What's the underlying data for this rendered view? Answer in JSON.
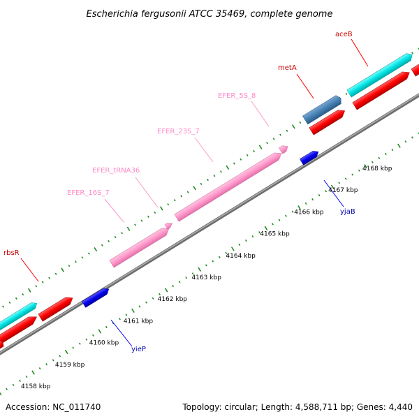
{
  "title": "Escherichia fergusonii ATCC 35469, complete genome",
  "footer": {
    "accession": "Accession: NC_011740",
    "summary": "Topology: circular; Length: 4,588,711 bp; Genes: 4,440"
  },
  "colors": {
    "backbone": "#808080",
    "cds_forward": "#ff0000",
    "cds_reverse": "#0000ee",
    "rrna": "#ff99cc",
    "trna": "#ff99cc",
    "operon": "#00e5e5",
    "misc": "#4682b4",
    "ticks": "#228b22"
  },
  "scale": {
    "ticks": [
      "4158 kbp",
      "4159 kbp",
      "4160 kbp",
      "4161 kbp",
      "4162 kbp",
      "4163 kbp",
      "4164 kbp",
      "4165 kbp",
      "4166 kbp",
      "4167 kbp",
      "4168 kbp"
    ]
  },
  "features": [
    {
      "label": "rbsR",
      "color": "#cc0000"
    },
    {
      "label": "EFER_16S_7",
      "color": "#ff88c8"
    },
    {
      "label": "EFER_tRNA36",
      "color": "#ff88c8"
    },
    {
      "label": "EFER_23S_7",
      "color": "#ff88c8"
    },
    {
      "label": "EFER_5S_8",
      "color": "#ff88c8"
    },
    {
      "label": "metA",
      "color": "#cc0000"
    },
    {
      "label": "aceB",
      "color": "#cc0000"
    },
    {
      "label": "yieP",
      "color": "#0000aa"
    },
    {
      "label": "yjaB",
      "color": "#0000aa"
    }
  ]
}
